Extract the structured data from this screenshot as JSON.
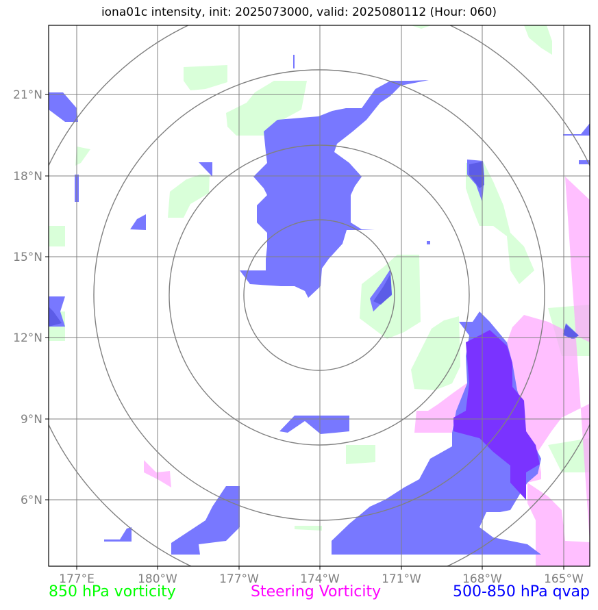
{
  "title": "iona01c intensity, init: 2025073000, valid: 2025080112 (Hour: 060)",
  "map": {
    "lat_labels": [
      "21°N",
      "18°N",
      "15°N",
      "12°N",
      "9°N",
      "6°N"
    ],
    "lon_labels": [
      "177°E",
      "180°W",
      "177°W",
      "174°W",
      "171°W",
      "168°W",
      "165°W"
    ],
    "grid_lines": true,
    "range_rings": 4
  },
  "legend": {
    "vorticity_850": "850 hPa vorticity",
    "steering_vorticity": "Steering Vorticity",
    "qvap_500_850": "500-850 hPa qvap"
  },
  "colors": {
    "vorticity_850": "#00ff00",
    "steering_vorticity": "#ff00ff",
    "qvap_500_850": "#0000ff",
    "grid": "#808080",
    "rings": "#808080"
  }
}
